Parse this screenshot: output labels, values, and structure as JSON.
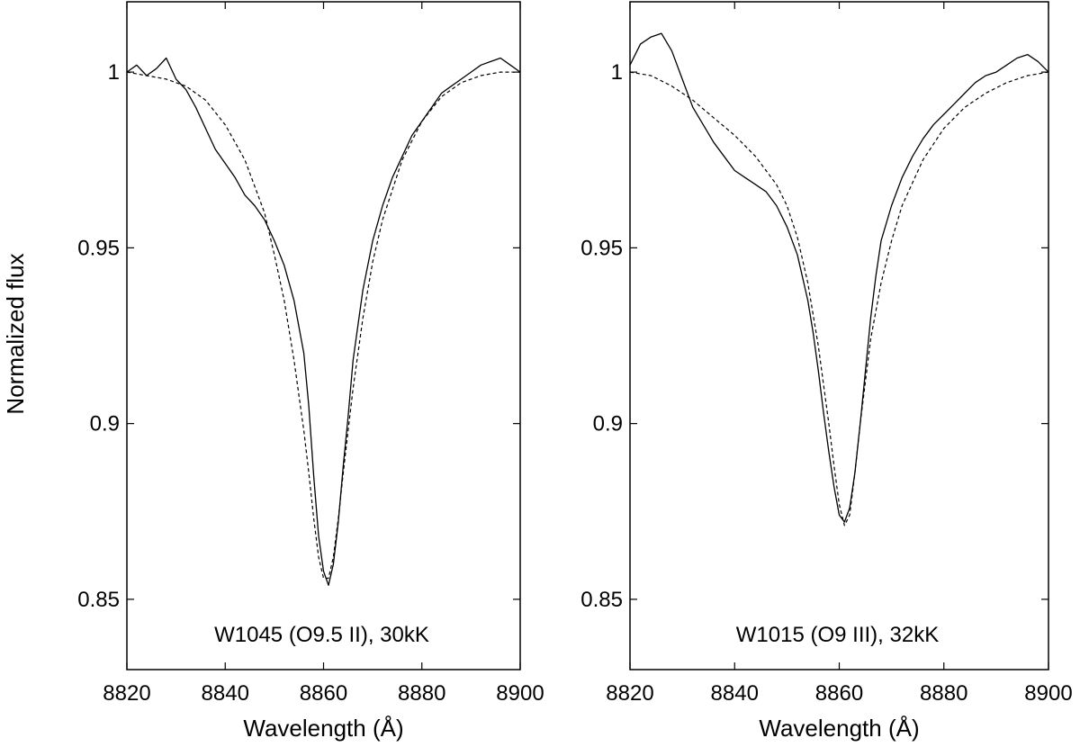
{
  "figure": {
    "ylabel": "Normalized flux",
    "y_ticks": [
      0.85,
      0.9,
      0.95,
      1
    ],
    "y_tick_labels": [
      "0.85",
      "0.9",
      "0.95",
      "1"
    ]
  },
  "chart_data": [
    {
      "type": "line",
      "annotation": "W1045 (O9.5 II), 30kK",
      "xlabel": "Wavelength (Å)",
      "ylabel": "Normalized flux",
      "xlim": [
        8820,
        8900
      ],
      "ylim": [
        0.83,
        1.02
      ],
      "x_ticks": [
        8820,
        8840,
        8860,
        8880,
        8900
      ],
      "x_tick_labels": [
        "8820",
        "8840",
        "8860",
        "8880",
        "8900"
      ],
      "grid": false,
      "series": [
        {
          "style": "solid",
          "x": [
            8820,
            8822,
            8824,
            8826,
            8828,
            8830,
            8832,
            8834,
            8836,
            8838,
            8840,
            8842,
            8844,
            8846,
            8848,
            8850,
            8852,
            8854,
            8856,
            8857,
            8858,
            8859,
            8860,
            8861,
            8862,
            8863,
            8864,
            8865,
            8866,
            8868,
            8870,
            8872,
            8874,
            8876,
            8878,
            8880,
            8882,
            8884,
            8886,
            8888,
            8890,
            8892,
            8894,
            8896,
            8898,
            8900
          ],
          "y": [
            1.0,
            1.002,
            0.999,
            1.001,
            1.004,
            0.998,
            0.995,
            0.99,
            0.984,
            0.978,
            0.974,
            0.97,
            0.965,
            0.962,
            0.958,
            0.952,
            0.945,
            0.935,
            0.92,
            0.905,
            0.885,
            0.868,
            0.858,
            0.854,
            0.86,
            0.872,
            0.888,
            0.902,
            0.918,
            0.938,
            0.952,
            0.962,
            0.97,
            0.976,
            0.982,
            0.986,
            0.99,
            0.994,
            0.996,
            0.998,
            1.0,
            1.002,
            1.003,
            1.004,
            1.002,
            1.0
          ]
        },
        {
          "style": "dashed",
          "x": [
            8820,
            8824,
            8828,
            8832,
            8836,
            8840,
            8844,
            8848,
            8850,
            8852,
            8854,
            8856,
            8857,
            8858,
            8859,
            8860,
            8861,
            8862,
            8863,
            8864,
            8865,
            8866,
            8868,
            8870,
            8872,
            8876,
            8880,
            8884,
            8888,
            8892,
            8896,
            8900
          ],
          "y": [
            1.0,
            0.999,
            0.998,
            0.996,
            0.992,
            0.985,
            0.975,
            0.96,
            0.948,
            0.935,
            0.918,
            0.898,
            0.886,
            0.873,
            0.862,
            0.856,
            0.856,
            0.862,
            0.873,
            0.886,
            0.898,
            0.91,
            0.93,
            0.946,
            0.958,
            0.975,
            0.986,
            0.993,
            0.997,
            0.999,
            1.0,
            1.0
          ]
        }
      ]
    },
    {
      "type": "line",
      "annotation": "W1015 (O9 III), 32kK",
      "xlabel": "Wavelength (Å)",
      "ylabel": "",
      "xlim": [
        8820,
        8900
      ],
      "ylim": [
        0.83,
        1.02
      ],
      "x_ticks": [
        8820,
        8840,
        8860,
        8880,
        8900
      ],
      "x_tick_labels": [
        "8820",
        "8840",
        "8860",
        "8880",
        "8900"
      ],
      "grid": false,
      "series": [
        {
          "style": "solid",
          "x": [
            8820,
            8822,
            8824,
            8826,
            8828,
            8830,
            8832,
            8834,
            8836,
            8838,
            8840,
            8842,
            8844,
            8846,
            8848,
            8850,
            8852,
            8854,
            8855,
            8856,
            8857,
            8858,
            8859,
            8860,
            8861,
            8862,
            8863,
            8864,
            8865,
            8866,
            8867,
            8868,
            8870,
            8872,
            8874,
            8876,
            8878,
            8880,
            8882,
            8884,
            8886,
            8888,
            8890,
            8892,
            8894,
            8896,
            8898,
            8900
          ],
          "y": [
            1.002,
            1.008,
            1.01,
            1.011,
            1.006,
            0.998,
            0.99,
            0.985,
            0.98,
            0.976,
            0.972,
            0.97,
            0.968,
            0.966,
            0.962,
            0.956,
            0.948,
            0.935,
            0.926,
            0.915,
            0.903,
            0.892,
            0.882,
            0.874,
            0.872,
            0.876,
            0.886,
            0.9,
            0.915,
            0.93,
            0.942,
            0.952,
            0.962,
            0.97,
            0.976,
            0.981,
            0.985,
            0.988,
            0.991,
            0.994,
            0.997,
            0.999,
            1.0,
            1.002,
            1.004,
            1.005,
            1.003,
            1.0
          ]
        },
        {
          "style": "dashed",
          "x": [
            8820,
            8824,
            8828,
            8832,
            8836,
            8840,
            8844,
            8848,
            8850,
            8852,
            8854,
            8856,
            8858,
            8859,
            8860,
            8861,
            8862,
            8863,
            8864,
            8866,
            8868,
            8870,
            8872,
            8876,
            8880,
            8884,
            8888,
            8892,
            8896,
            8900
          ],
          "y": [
            1.0,
            0.999,
            0.996,
            0.992,
            0.987,
            0.982,
            0.976,
            0.968,
            0.962,
            0.953,
            0.94,
            0.922,
            0.9,
            0.888,
            0.877,
            0.871,
            0.874,
            0.886,
            0.9,
            0.924,
            0.94,
            0.952,
            0.962,
            0.975,
            0.984,
            0.99,
            0.994,
            0.997,
            0.999,
            1.0
          ]
        }
      ]
    }
  ]
}
